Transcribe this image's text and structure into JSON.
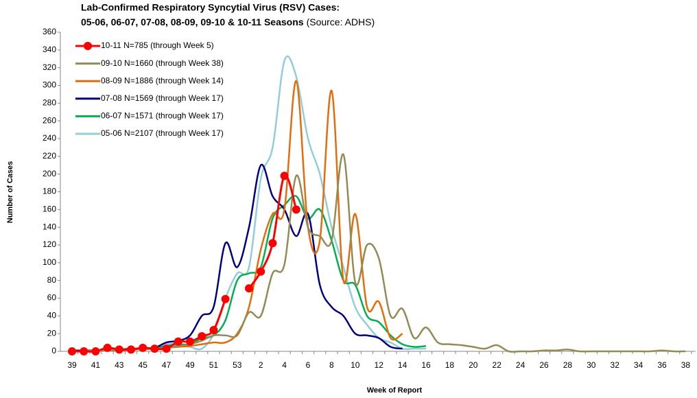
{
  "chart_data": {
    "type": "line",
    "title": [
      "Lab-Confirmed Respiratory Syncytial Virus (RSV) Cases:",
      "05-06, 06-07, 07-08, 08-09, 09-10 & 10-11 Seasons"
    ],
    "subtitle": "(Source: ADHS)",
    "x_label": "Week of Report",
    "y_label": "Number of Cases",
    "categories": [
      "39",
      null,
      "41",
      null,
      "43",
      null,
      "45",
      null,
      "47",
      null,
      "49",
      null,
      "51",
      null,
      "53",
      null,
      "2",
      null,
      "4",
      null,
      "6",
      null,
      "8",
      null,
      "10",
      null,
      "12",
      null,
      "14",
      null,
      "16",
      null,
      "18",
      null,
      "20",
      null,
      "22",
      null,
      "24",
      null,
      "26",
      null,
      "28",
      null,
      "30",
      null,
      "32",
      null,
      "34",
      null,
      "36",
      null,
      "38"
    ],
    "ylim": [
      0,
      360
    ],
    "yticks": [
      0,
      20,
      40,
      60,
      80,
      100,
      120,
      140,
      160,
      180,
      200,
      220,
      240,
      260,
      280,
      300,
      320,
      340,
      360
    ],
    "legend": "top-left",
    "series": [
      {
        "name": "10-11 N=785 (through Week 5)",
        "color": "#ff0000",
        "markers": true,
        "values": [
          0,
          0,
          0,
          4,
          2,
          2,
          4,
          3,
          3,
          11,
          11,
          17,
          24,
          59,
          null,
          71,
          90,
          122,
          198,
          160,
          null,
          null,
          null,
          null,
          null,
          null,
          null,
          null,
          null,
          null,
          null,
          null,
          null,
          null,
          null,
          null,
          null,
          null,
          null,
          null,
          null,
          null,
          null,
          null,
          null,
          null,
          null,
          null,
          null,
          null,
          null,
          null,
          null
        ]
      },
      {
        "name": "09-10 N=1660 (through Week 38)",
        "color": "#948a54",
        "values": [
          0,
          0,
          1,
          1,
          1,
          2,
          2,
          3,
          4,
          6,
          8,
          12,
          18,
          18,
          18,
          44,
          40,
          88,
          98,
          198,
          140,
          130,
          125,
          222,
          78,
          120,
          105,
          40,
          48,
          15,
          27,
          10,
          8,
          7,
          5,
          3,
          7,
          0,
          0,
          0,
          1,
          1,
          2,
          0,
          0,
          0,
          0,
          0,
          0,
          0,
          1,
          0,
          0
        ]
      },
      {
        "name": "08-09 N=1886 (through Week 14)",
        "color": "#e46c0a",
        "values": [
          0,
          0,
          1,
          1,
          2,
          2,
          3,
          3,
          4,
          5,
          6,
          8,
          10,
          10,
          20,
          50,
          115,
          155,
          160,
          305,
          140,
          125,
          294,
          80,
          155,
          50,
          56,
          15,
          20,
          null,
          null,
          null,
          null,
          null,
          null,
          null,
          null,
          null,
          null,
          null,
          null,
          null,
          null,
          null,
          null,
          null,
          null,
          null,
          null,
          null,
          null,
          null,
          null
        ]
      },
      {
        "name": "07-08 N=1569 (through Week 17)",
        "color": "#000080",
        "values": [
          1,
          1,
          1,
          2,
          2,
          3,
          3,
          4,
          10,
          12,
          18,
          40,
          50,
          122,
          95,
          140,
          210,
          175,
          160,
          130,
          155,
          75,
          50,
          40,
          20,
          18,
          15,
          5,
          3,
          null,
          null,
          null,
          null,
          null,
          null,
          null,
          null,
          null,
          null,
          null,
          null,
          null,
          null,
          null,
          null,
          null,
          null,
          null,
          null,
          null,
          null,
          null,
          null
        ]
      },
      {
        "name": "06-07 N=1571 (through Week 17)",
        "color": "#00b050",
        "values": [
          0,
          0,
          1,
          1,
          2,
          2,
          3,
          4,
          6,
          8,
          8,
          15,
          18,
          35,
          80,
          88,
          95,
          150,
          165,
          175,
          150,
          160,
          125,
          80,
          75,
          40,
          33,
          18,
          8,
          5,
          6,
          null,
          null,
          null,
          null,
          null,
          null,
          null,
          null,
          null,
          null,
          null,
          null,
          null,
          null,
          null,
          null,
          null,
          null,
          null,
          null,
          null,
          null
        ]
      },
      {
        "name": "05-06 N=2107 (through Week 17)",
        "color": "#92cddc",
        "values": [
          1,
          1,
          1,
          2,
          2,
          2,
          3,
          4,
          8,
          8,
          5,
          3,
          20,
          60,
          88,
          95,
          195,
          230,
          328,
          310,
          240,
          200,
          140,
          95,
          50,
          30,
          15,
          10,
          3,
          3,
          3,
          null,
          null,
          null,
          null,
          null,
          null,
          null,
          null,
          null,
          null,
          null,
          null,
          null,
          null,
          null,
          null,
          null,
          null,
          null,
          null,
          null,
          null
        ]
      }
    ]
  }
}
